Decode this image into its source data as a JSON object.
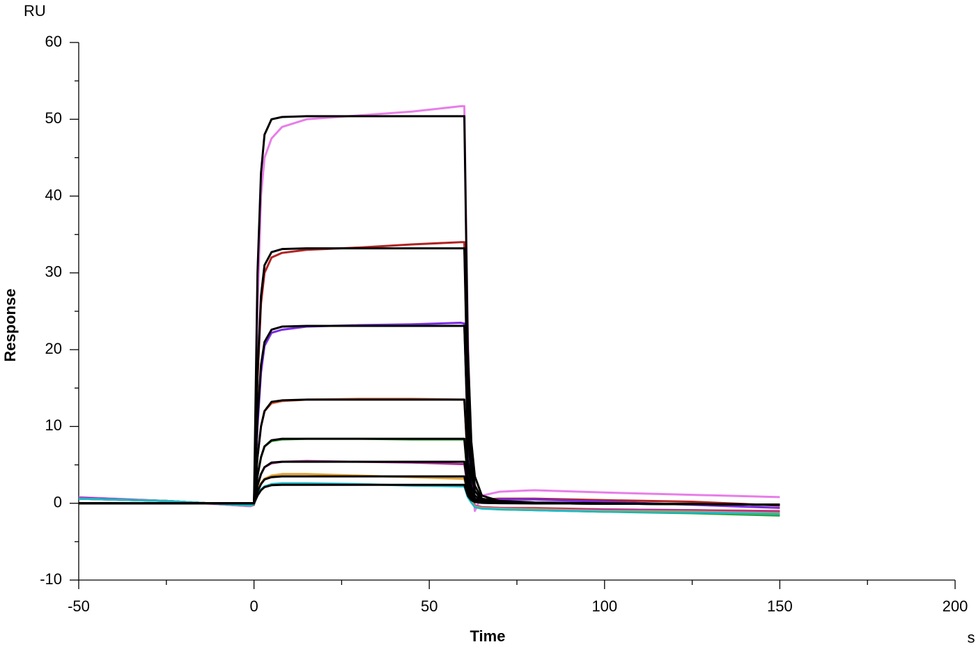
{
  "chart_data": {
    "type": "line",
    "title": "RU",
    "x_label": "Time",
    "x_unit": "s",
    "y_label": "Response",
    "xlim": [
      -50,
      200
    ],
    "ylim": [
      -10,
      60
    ],
    "xticks": [
      -50,
      0,
      50,
      100,
      150,
      200
    ],
    "yticks": [
      -10,
      0,
      10,
      20,
      30,
      40,
      50,
      60
    ],
    "xminorticks": [
      -25,
      25,
      75,
      125,
      175
    ],
    "yminorticks": [
      -5,
      5,
      15,
      25,
      35,
      45,
      55
    ],
    "x": [
      -50,
      -25,
      -1,
      0,
      1,
      2,
      3,
      5,
      8,
      15,
      30,
      45,
      59,
      60,
      61,
      62,
      63,
      65,
      70,
      80,
      100,
      125,
      150
    ],
    "series": [
      {
        "color": "#e87ee8",
        "values": [
          0.8,
          0.3,
          -0.4,
          -0.2,
          25,
          40,
          45,
          47.5,
          49,
          50,
          50.5,
          51,
          51.7,
          51.7,
          22,
          5,
          -1,
          1,
          1.5,
          1.7,
          1.4,
          1.1,
          0.8
        ]
      },
      {
        "color": "#b22222",
        "values": [
          0.7,
          0.3,
          -0.3,
          -0.2,
          16,
          26,
          30,
          32,
          32.6,
          33,
          33.3,
          33.7,
          34,
          34,
          14,
          4,
          0.5,
          0.5,
          0.6,
          0.6,
          0.4,
          0.2,
          -0.3
        ]
      },
      {
        "color": "#7b2be2",
        "values": [
          0.7,
          0.3,
          -0.3,
          -0.1,
          10,
          17,
          20.5,
          22.2,
          22.6,
          23,
          23.2,
          23.3,
          23.5,
          23.4,
          9,
          3,
          0.5,
          0.4,
          0.5,
          0.5,
          0.2,
          -0.2,
          -0.6
        ]
      },
      {
        "color": "#e0603a",
        "values": [
          0.6,
          0.3,
          -0.3,
          -0.1,
          6,
          10,
          12,
          13,
          13.3,
          13.5,
          13.6,
          13.6,
          13.5,
          13.5,
          5,
          1.5,
          -0.3,
          -0.5,
          -0.6,
          -0.6,
          -0.8,
          -0.9,
          -1.0
        ]
      },
      {
        "color": "#2ca02c",
        "values": [
          0.6,
          0.3,
          -0.3,
          -0.1,
          3.5,
          6,
          7.4,
          8.1,
          8.3,
          8.4,
          8.4,
          8.3,
          8.3,
          8.3,
          3,
          1,
          -0.4,
          -0.6,
          -0.8,
          -0.9,
          -1.1,
          -1.3,
          -1.6
        ]
      },
      {
        "color": "#b0309a",
        "values": [
          0.6,
          0.3,
          -0.3,
          -0.1,
          2.3,
          3.8,
          4.7,
          5.2,
          5.4,
          5.5,
          5.4,
          5.3,
          5.1,
          5.1,
          2,
          0.5,
          -0.3,
          -0.5,
          -0.6,
          -0.7,
          -0.8,
          -0.9,
          -1.1
        ]
      },
      {
        "color": "#e0a030",
        "values": [
          0.6,
          0.3,
          -0.3,
          -0.1,
          1.6,
          2.6,
          3.2,
          3.6,
          3.8,
          3.8,
          3.6,
          3.4,
          3.2,
          3.2,
          1.2,
          0.2,
          -0.4,
          -0.6,
          -0.7,
          -0.8,
          -1.0,
          -1.1,
          -1.3
        ]
      },
      {
        "color": "#20b8c8",
        "values": [
          0.6,
          0.3,
          -0.3,
          -0.1,
          1.1,
          1.8,
          2.2,
          2.5,
          2.6,
          2.6,
          2.5,
          2.3,
          2.2,
          2.2,
          0.8,
          0.1,
          -0.5,
          -0.7,
          -0.8,
          -0.9,
          -1.1,
          -1.2,
          -1.4
        ]
      },
      {
        "color": "#000000",
        "values": [
          0,
          0,
          0,
          0,
          30,
          43,
          48,
          50,
          50.3,
          50.4,
          50.4,
          50.4,
          50.4,
          50.4,
          20,
          8,
          3.5,
          1,
          0.3,
          0.1,
          0,
          -0.1,
          -0.2
        ]
      },
      {
        "color": "#000000",
        "values": [
          0,
          0,
          0,
          0,
          17,
          27,
          31,
          32.7,
          33.1,
          33.2,
          33.2,
          33.2,
          33.2,
          33.2,
          13,
          5.5,
          2.3,
          0.6,
          0.2,
          0.05,
          -0.05,
          -0.1,
          -0.2
        ]
      },
      {
        "color": "#000000",
        "values": [
          0,
          0,
          0,
          0,
          11,
          18,
          21,
          22.6,
          23,
          23.1,
          23.1,
          23.1,
          23.1,
          23.1,
          9,
          3.8,
          1.6,
          0.4,
          0.1,
          0,
          -0.05,
          -0.1,
          -0.2
        ]
      },
      {
        "color": "#000000",
        "values": [
          0,
          0,
          0,
          0,
          6,
          10,
          12,
          13.2,
          13.4,
          13.5,
          13.5,
          13.5,
          13.5,
          13.5,
          5.4,
          2.2,
          1,
          0.3,
          0.1,
          0,
          -0.05,
          -0.1,
          -0.2
        ]
      },
      {
        "color": "#000000",
        "values": [
          0,
          0,
          0,
          0,
          3.6,
          6,
          7.4,
          8.2,
          8.4,
          8.4,
          8.4,
          8.4,
          8.4,
          8.4,
          3.4,
          1.4,
          0.6,
          0.2,
          0.05,
          0,
          -0.05,
          -0.1,
          -0.2
        ]
      },
      {
        "color": "#000000",
        "values": [
          0,
          0,
          0,
          0,
          2.3,
          3.8,
          4.7,
          5.3,
          5.4,
          5.4,
          5.4,
          5.4,
          5.4,
          5.4,
          2.2,
          0.9,
          0.4,
          0.1,
          0.03,
          0,
          -0.05,
          -0.1,
          -0.2
        ]
      },
      {
        "color": "#000000",
        "values": [
          0,
          0,
          0,
          0,
          1.5,
          2.5,
          3.1,
          3.4,
          3.5,
          3.5,
          3.5,
          3.5,
          3.5,
          3.5,
          1.4,
          0.6,
          0.25,
          0.07,
          0.02,
          0,
          -0.05,
          -0.1,
          -0.2
        ]
      },
      {
        "color": "#000000",
        "values": [
          0,
          0,
          0,
          0,
          1,
          1.7,
          2.1,
          2.35,
          2.4,
          2.4,
          2.4,
          2.4,
          2.4,
          2.4,
          1,
          0.4,
          0.17,
          0.05,
          0.01,
          0,
          -0.05,
          -0.1,
          -0.2
        ]
      }
    ]
  }
}
